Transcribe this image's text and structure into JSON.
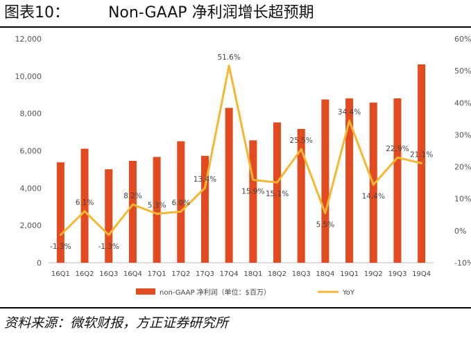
{
  "header": {
    "title": "图表10：        Non-GAAP 净利润增长超预期"
  },
  "footer": {
    "source": "资料来源：微软财报，方正证券研究所"
  },
  "colors": {
    "bar": "#e24a1f",
    "line": "#f5b731",
    "axis": "#bfbfbf"
  },
  "chart_data": {
    "type": "bar",
    "categories": [
      "16Q1",
      "16Q2",
      "16Q3",
      "16Q4",
      "17Q1",
      "17Q2",
      "17Q3",
      "17Q4",
      "18Q1",
      "18Q2",
      "18Q3",
      "18Q4",
      "19Q1",
      "19Q2",
      "19Q3",
      "19Q4"
    ],
    "series": [
      {
        "name": "non-GAAP 净利润（单位：$百万）",
        "type": "bar",
        "values": [
          5380,
          6110,
          5010,
          5460,
          5670,
          6510,
          5730,
          8300,
          6560,
          7520,
          7170,
          8750,
          8810,
          8580,
          8810,
          10630
        ]
      },
      {
        "name": "YoY",
        "type": "line",
        "axis": "right",
        "values": [
          -1.3,
          6.1,
          -1.3,
          8.2,
          5.3,
          6.0,
          13.4,
          51.6,
          15.9,
          15.1,
          25.5,
          5.5,
          34.4,
          14.4,
          22.9,
          21.1
        ],
        "labels": [
          "-1.3%",
          "6.1%",
          "-1.3%",
          "8.2%",
          "5.3%",
          "6.0%",
          "13.4%",
          "51.6%",
          "15.9%",
          "15.1%",
          "25.5%",
          "5.5%",
          "34.4%",
          "14.4%",
          "22.9%",
          "21.1%"
        ]
      }
    ],
    "yleft": {
      "lim": [
        0,
        12000
      ],
      "ticks": [
        "0",
        "2,000",
        "4,000",
        "6,000",
        "8,000",
        "10,000",
        "12,000"
      ]
    },
    "yright": {
      "lim": [
        -10,
        60
      ],
      "ticks": [
        "-10%",
        "0%",
        "10%",
        "20%",
        "30%",
        "40%",
        "50%",
        "60%"
      ]
    },
    "legend": {
      "placement": "bottom"
    },
    "grid": false
  }
}
